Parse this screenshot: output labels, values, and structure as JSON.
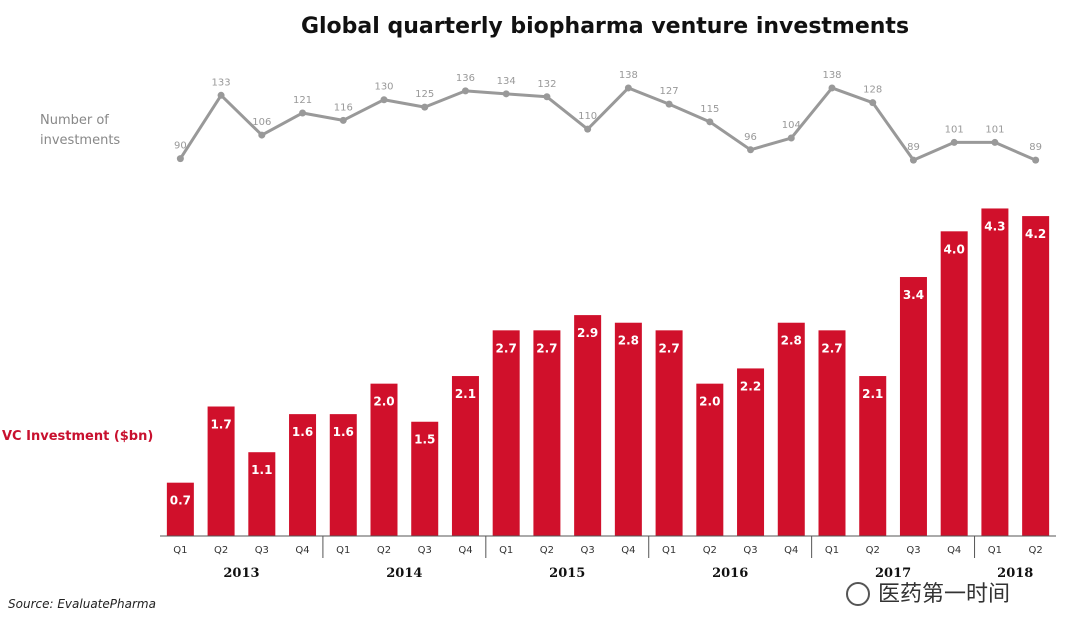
{
  "chart_data": {
    "type": "bar",
    "title": "Global quarterly biopharma venture investments",
    "categories": [
      "Q1",
      "Q2",
      "Q3",
      "Q4",
      "Q1",
      "Q2",
      "Q3",
      "Q4",
      "Q1",
      "Q2",
      "Q3",
      "Q4",
      "Q1",
      "Q2",
      "Q3",
      "Q4",
      "Q1",
      "Q2",
      "Q3",
      "Q4",
      "Q1",
      "Q2"
    ],
    "years": [
      {
        "label": "2013",
        "span": 4
      },
      {
        "label": "2014",
        "span": 4
      },
      {
        "label": "2015",
        "span": 4
      },
      {
        "label": "2016",
        "span": 4
      },
      {
        "label": "2017",
        "span": 4
      },
      {
        "label": "2018",
        "span": 2
      }
    ],
    "series": [
      {
        "name": "VC Investment ($bn)",
        "type": "bar",
        "color": "#d0102b",
        "values": [
          0.7,
          1.7,
          1.1,
          1.6,
          1.6,
          2.0,
          1.5,
          2.1,
          2.7,
          2.7,
          2.9,
          2.8,
          2.7,
          2.0,
          2.2,
          2.8,
          2.7,
          2.1,
          3.4,
          4.0,
          4.3,
          4.2
        ],
        "labels": [
          "0.7",
          "1.7",
          "1.1",
          "1.6",
          "1.6",
          "2.0",
          "1.5",
          "2.1",
          "2.7",
          "2.7",
          "2.9",
          "2.8",
          "2.7",
          "2.0",
          "2.2",
          "2.8",
          "2.7",
          "2.1",
          "3.4",
          "4.0",
          "4.3",
          "4.2"
        ],
        "ylim": [
          0,
          4.7
        ]
      },
      {
        "name": "Number of investments",
        "type": "line",
        "color": "#999999",
        "values": [
          90,
          133,
          106,
          121,
          116,
          130,
          125,
          136,
          134,
          132,
          110,
          138,
          127,
          115,
          96,
          104,
          138,
          128,
          89,
          101,
          101,
          89
        ],
        "ylim": [
          85,
          140
        ]
      }
    ],
    "line_label_lines": [
      "Number of",
      "investments"
    ],
    "bar_label": "VC Investment ($bn)",
    "source": "Source: EvaluatePharma",
    "watermark": "医药第一时间"
  }
}
